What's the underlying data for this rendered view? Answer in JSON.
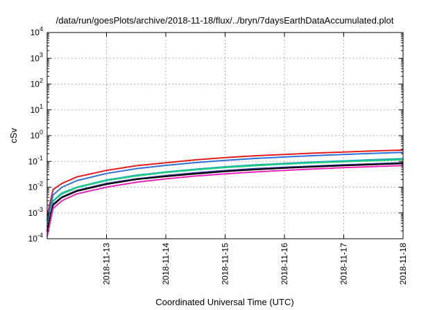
{
  "chart_data": {
    "type": "line",
    "title": "/data/run/goesPlots/archive/2018-11-18/flux/../bryn/7daysEarthDataAccumulated.plot",
    "xlabel": "Coordinated Universal Time (UTC)",
    "ylabel": "cSv",
    "yscale": "log",
    "ylim": [
      0.0001,
      10000
    ],
    "ytick_exponents": [
      "-4",
      "-3",
      "-2",
      "-1",
      "0",
      "1",
      "2",
      "3",
      "4"
    ],
    "xlim": [
      "2018-11-12",
      "2018-11-18"
    ],
    "x_ticks": [
      "2018-11-13",
      "2018-11-14",
      "2018-11-15",
      "2018-11-16",
      "2018-11-17",
      "2018-11-18"
    ],
    "grid": true,
    "legend": "none",
    "x": [
      "2018-11-12",
      "2018-11-12.1",
      "2018-11-12.25",
      "2018-11-12.5",
      "2018-11-13",
      "2018-11-13.5",
      "2018-11-14",
      "2018-11-14.5",
      "2018-11-15",
      "2018-11-15.5",
      "2018-11-16",
      "2018-11-16.5",
      "2018-11-17",
      "2018-11-17.5",
      "2018-11-18"
    ],
    "series": [
      {
        "color": "#e41a1c",
        "values": [
          0.0008,
          0.008,
          0.014,
          0.025,
          0.045,
          0.068,
          0.088,
          0.115,
          0.14,
          0.165,
          0.185,
          0.21,
          0.23,
          0.255,
          0.275
        ]
      },
      {
        "color": "#2e6fe0",
        "values": [
          0.0005,
          0.005,
          0.01,
          0.018,
          0.034,
          0.052,
          0.07,
          0.09,
          0.11,
          0.13,
          0.148,
          0.168,
          0.185,
          0.205,
          0.225
        ]
      },
      {
        "color": "#1aa8c0",
        "values": [
          0.0003,
          0.003,
          0.006,
          0.01,
          0.019,
          0.029,
          0.039,
          0.05,
          0.062,
          0.073,
          0.084,
          0.095,
          0.105,
          0.116,
          0.128
        ]
      },
      {
        "color": "#1fcf7f",
        "values": [
          0.0003,
          0.0028,
          0.0055,
          0.0095,
          0.018,
          0.027,
          0.037,
          0.047,
          0.058,
          0.068,
          0.078,
          0.088,
          0.097,
          0.107,
          0.117
        ]
      },
      {
        "color": "#333399",
        "values": [
          0.0002,
          0.0022,
          0.0042,
          0.0075,
          0.014,
          0.021,
          0.028,
          0.036,
          0.044,
          0.052,
          0.059,
          0.066,
          0.073,
          0.081,
          0.088
        ]
      },
      {
        "color": "#000000",
        "values": [
          0.0002,
          0.002,
          0.004,
          0.007,
          0.013,
          0.02,
          0.026,
          0.033,
          0.041,
          0.048,
          0.055,
          0.062,
          0.069,
          0.076,
          0.083
        ]
      },
      {
        "color": "#ee22bb",
        "values": [
          0.00012,
          0.0015,
          0.003,
          0.0055,
          0.01,
          0.0155,
          0.021,
          0.027,
          0.033,
          0.039,
          0.045,
          0.051,
          0.057,
          0.063,
          0.069
        ]
      }
    ]
  }
}
